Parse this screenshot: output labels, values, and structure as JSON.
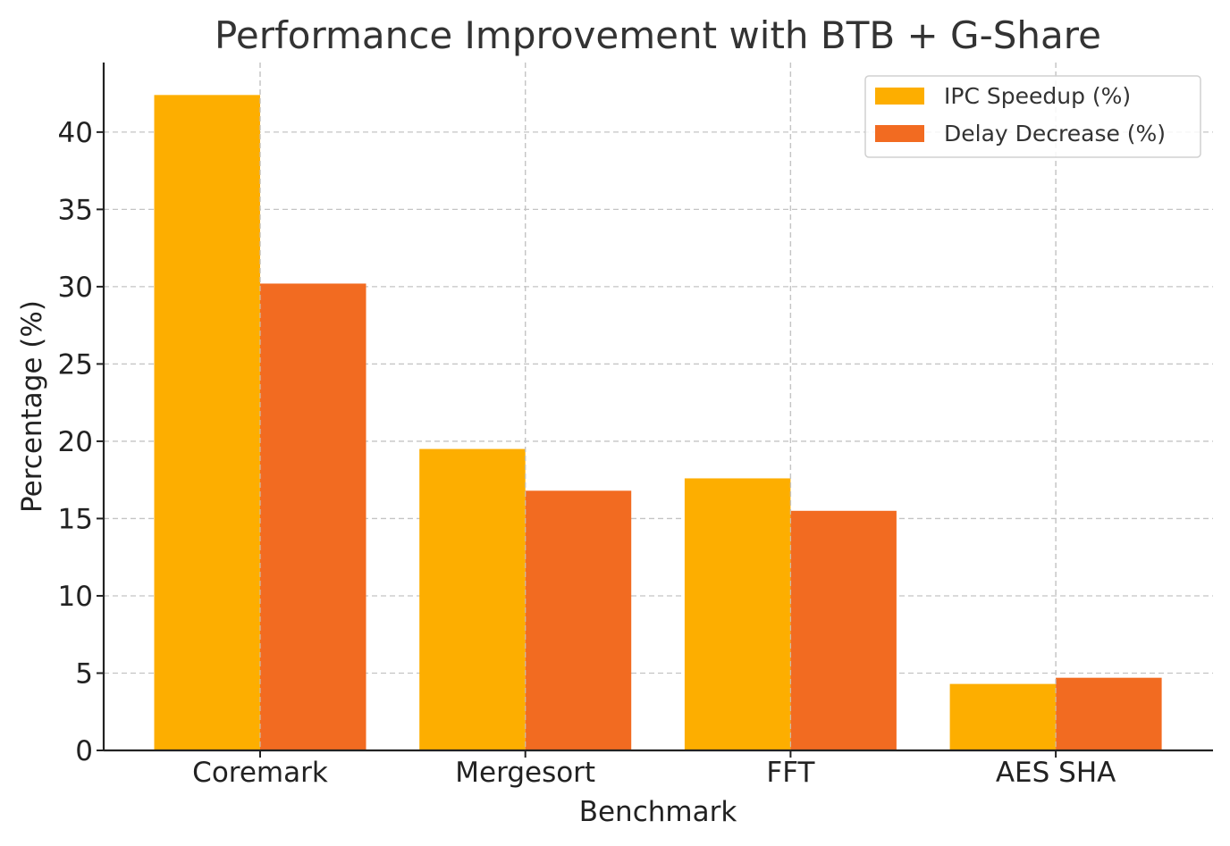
{
  "chart_data": {
    "type": "bar",
    "title": "Performance Improvement with BTB + G-Share",
    "xlabel": "Benchmark",
    "ylabel": "Percentage (%)",
    "categories": [
      "Coremark",
      "Mergesort",
      "FFT",
      "AES SHA"
    ],
    "series": [
      {
        "name": "IPC Speedup (%)",
        "color": "#FDAE00",
        "values": [
          42.4,
          19.5,
          17.6,
          4.3
        ]
      },
      {
        "name": "Delay Decrease (%)",
        "color": "#F26B21",
        "values": [
          30.2,
          16.8,
          15.5,
          4.7
        ]
      }
    ],
    "ylim": [
      0,
      44.5
    ],
    "yticks": [
      0,
      5,
      10,
      15,
      20,
      25,
      30,
      35,
      40
    ],
    "grid": true,
    "legend_position": "top-right"
  }
}
